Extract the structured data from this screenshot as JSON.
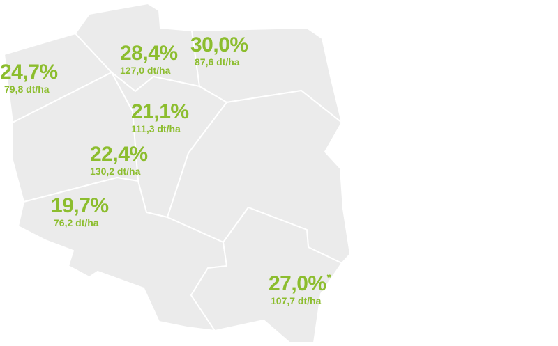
{
  "colors": {
    "region_fill": "#ebebeb",
    "border": "#ffffff",
    "label": "#8cbd2e"
  },
  "regions": [
    {
      "id": "northwest",
      "percent": "24,7%",
      "yield": "79,8 dt/ha"
    },
    {
      "id": "north-central",
      "percent": "28,4%",
      "yield": "127,0 dt/ha"
    },
    {
      "id": "north-east-coast",
      "percent": "30,0%",
      "yield": "87,6 dt/ha"
    },
    {
      "id": "central",
      "percent": "21,1%",
      "yield": "111,3 dt/ha"
    },
    {
      "id": "west-central",
      "percent": "22,4%",
      "yield": "130,2 dt/ha"
    },
    {
      "id": "southwest",
      "percent": "19,7%",
      "yield": "76,2 dt/ha"
    },
    {
      "id": "southeast",
      "percent": "27,0%",
      "yield": "107,7 dt/ha",
      "note": "*"
    }
  ]
}
